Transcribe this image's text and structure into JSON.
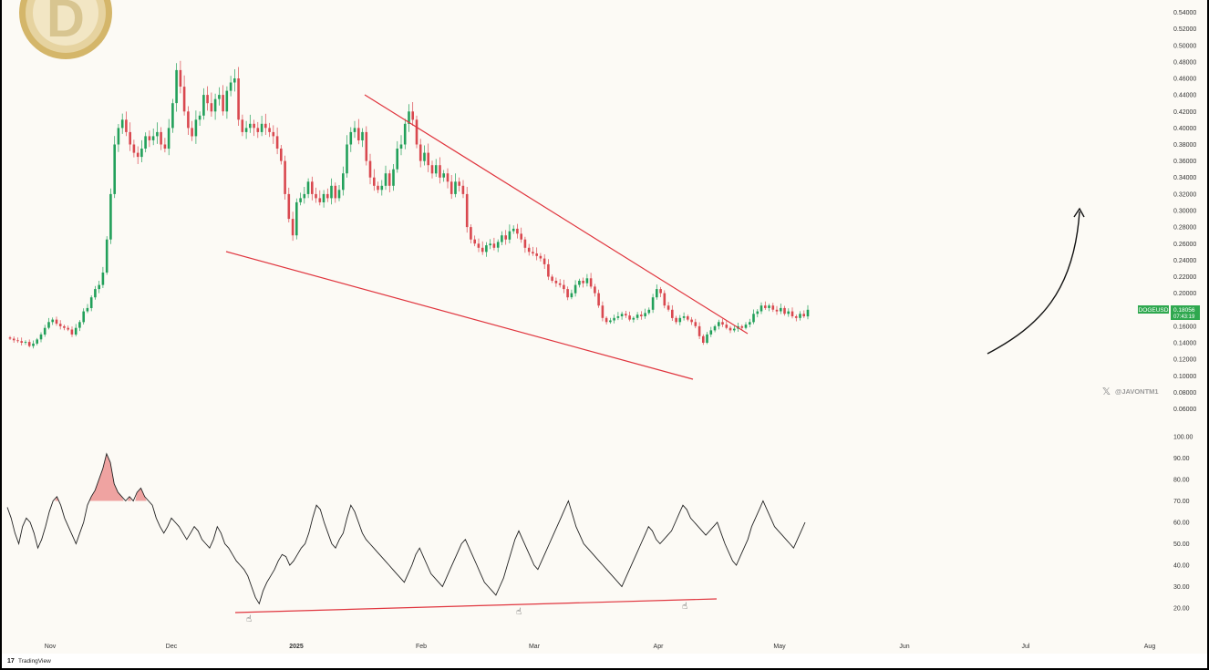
{
  "brand": {
    "footer": "TradingView",
    "watermark": "@JAVONTM1"
  },
  "colors": {
    "up": "#22a05a",
    "down": "#d9484f",
    "trend": "#e0353e",
    "badge": "#2fa84f",
    "rsi_line": "#222222",
    "rsi_fill": "#e45b5b"
  },
  "chart_data": [
    {
      "type": "candlestick",
      "ticker": "DOGEUSD",
      "last_price": "0.18056",
      "countdown": "07:43:19",
      "ylim": [
        0.05,
        0.55
      ],
      "price_ticks": [
        "0.54000",
        "0.52000",
        "0.50000",
        "0.48000",
        "0.46000",
        "0.44000",
        "0.42000",
        "0.40000",
        "0.38000",
        "0.36000",
        "0.34000",
        "0.32000",
        "0.30000",
        "0.28000",
        "0.26000",
        "0.24000",
        "0.22000",
        "0.20000",
        "0.18000",
        "0.16000",
        "0.14000",
        "0.12000",
        "0.10000",
        "0.08000",
        "0.06000"
      ],
      "x_ticks": [
        {
          "label": "Nov",
          "date": "2024-11-01"
        },
        {
          "label": "Dec",
          "date": "2024-12-01"
        },
        {
          "label": "2025",
          "date": "2025-01-01",
          "bold": true
        },
        {
          "label": "Feb",
          "date": "2025-02-01"
        },
        {
          "label": "Mar",
          "date": "2025-03-01"
        },
        {
          "label": "Apr",
          "date": "2025-04-01"
        },
        {
          "label": "May",
          "date": "2025-05-01"
        },
        {
          "label": "Jun",
          "date": "2025-06-01"
        },
        {
          "label": "Jul",
          "date": "2025-07-01"
        },
        {
          "label": "Aug",
          "date": "2025-08-01"
        }
      ],
      "closes": [
        0.145,
        0.143,
        0.142,
        0.14,
        0.141,
        0.136,
        0.139,
        0.144,
        0.15,
        0.158,
        0.165,
        0.168,
        0.163,
        0.16,
        0.158,
        0.156,
        0.15,
        0.158,
        0.165,
        0.178,
        0.182,
        0.195,
        0.205,
        0.21,
        0.225,
        0.265,
        0.32,
        0.38,
        0.4,
        0.41,
        0.395,
        0.38,
        0.37,
        0.365,
        0.375,
        0.39,
        0.385,
        0.39,
        0.395,
        0.38,
        0.375,
        0.4,
        0.43,
        0.47,
        0.45,
        0.42,
        0.4,
        0.39,
        0.41,
        0.415,
        0.44,
        0.43,
        0.42,
        0.435,
        0.44,
        0.42,
        0.445,
        0.455,
        0.46,
        0.41,
        0.395,
        0.4,
        0.405,
        0.4,
        0.395,
        0.405,
        0.4,
        0.395,
        0.39,
        0.375,
        0.36,
        0.32,
        0.29,
        0.27,
        0.31,
        0.315,
        0.32,
        0.335,
        0.32,
        0.315,
        0.31,
        0.32,
        0.315,
        0.33,
        0.315,
        0.325,
        0.345,
        0.38,
        0.395,
        0.4,
        0.385,
        0.395,
        0.36,
        0.34,
        0.33,
        0.325,
        0.33,
        0.345,
        0.33,
        0.35,
        0.375,
        0.38,
        0.405,
        0.42,
        0.41,
        0.38,
        0.36,
        0.37,
        0.355,
        0.345,
        0.355,
        0.34,
        0.345,
        0.335,
        0.32,
        0.335,
        0.33,
        0.32,
        0.28,
        0.265,
        0.26,
        0.255,
        0.25,
        0.258,
        0.26,
        0.255,
        0.262,
        0.27,
        0.265,
        0.275,
        0.278,
        0.272,
        0.265,
        0.255,
        0.25,
        0.248,
        0.245,
        0.242,
        0.235,
        0.22,
        0.215,
        0.212,
        0.21,
        0.205,
        0.195,
        0.2,
        0.21,
        0.215,
        0.212,
        0.218,
        0.208,
        0.2,
        0.185,
        0.17,
        0.165,
        0.167,
        0.17,
        0.172,
        0.175,
        0.173,
        0.168,
        0.17,
        0.174,
        0.172,
        0.176,
        0.18,
        0.195,
        0.205,
        0.2,
        0.185,
        0.18,
        0.17,
        0.165,
        0.17,
        0.172,
        0.168,
        0.165,
        0.16,
        0.148,
        0.14,
        0.15,
        0.155,
        0.16,
        0.165,
        0.162,
        0.158,
        0.155,
        0.157,
        0.16,
        0.158,
        0.162,
        0.165,
        0.175,
        0.178,
        0.185,
        0.182,
        0.185,
        0.18,
        0.178,
        0.182,
        0.175,
        0.178,
        0.172,
        0.17,
        0.175,
        0.172,
        0.18
      ]
    },
    {
      "type": "line",
      "name": "RSI",
      "ylim": [
        15,
        105
      ],
      "rsi_ticks": [
        "100.00",
        "90.00",
        "80.00",
        "70.00",
        "60.00",
        "50.00",
        "40.00",
        "30.00",
        "20.00"
      ],
      "values": [
        67,
        62,
        55,
        50,
        58,
        62,
        60,
        55,
        48,
        52,
        58,
        65,
        70,
        72,
        68,
        62,
        58,
        54,
        50,
        55,
        60,
        68,
        72,
        75,
        80,
        85,
        92,
        88,
        78,
        74,
        72,
        70,
        72,
        70,
        74,
        76,
        72,
        70,
        68,
        62,
        58,
        55,
        58,
        62,
        60,
        58,
        55,
        52,
        55,
        58,
        56,
        52,
        50,
        48,
        52,
        58,
        55,
        50,
        48,
        45,
        42,
        40,
        38,
        35,
        30,
        25,
        22,
        28,
        32,
        35,
        38,
        42,
        45,
        44,
        40,
        42,
        45,
        48,
        50,
        55,
        62,
        68,
        66,
        60,
        55,
        50,
        48,
        52,
        55,
        62,
        68,
        65,
        60,
        55,
        52,
        50,
        48,
        46,
        44,
        42,
        40,
        38,
        36,
        34,
        32,
        36,
        40,
        45,
        48,
        44,
        40,
        36,
        34,
        32,
        30,
        34,
        38,
        42,
        46,
        50,
        52,
        48,
        44,
        40,
        36,
        32,
        30,
        28,
        26,
        30,
        34,
        40,
        46,
        52,
        56,
        52,
        48,
        44,
        40,
        38,
        42,
        46,
        50,
        54,
        58,
        62,
        66,
        70,
        64,
        58,
        54,
        50,
        48,
        46,
        44,
        42,
        40,
        38,
        36,
        34,
        32,
        30,
        34,
        38,
        42,
        46,
        50,
        54,
        58,
        56,
        52,
        50,
        52,
        54,
        56,
        60,
        64,
        68,
        66,
        62,
        60,
        58,
        56,
        54,
        56,
        58,
        60,
        55,
        50,
        46,
        42,
        40,
        44,
        48,
        52,
        58,
        62,
        66,
        70,
        66,
        62,
        58,
        56,
        54,
        52,
        50,
        48,
        52,
        56,
        60
      ]
    }
  ]
}
